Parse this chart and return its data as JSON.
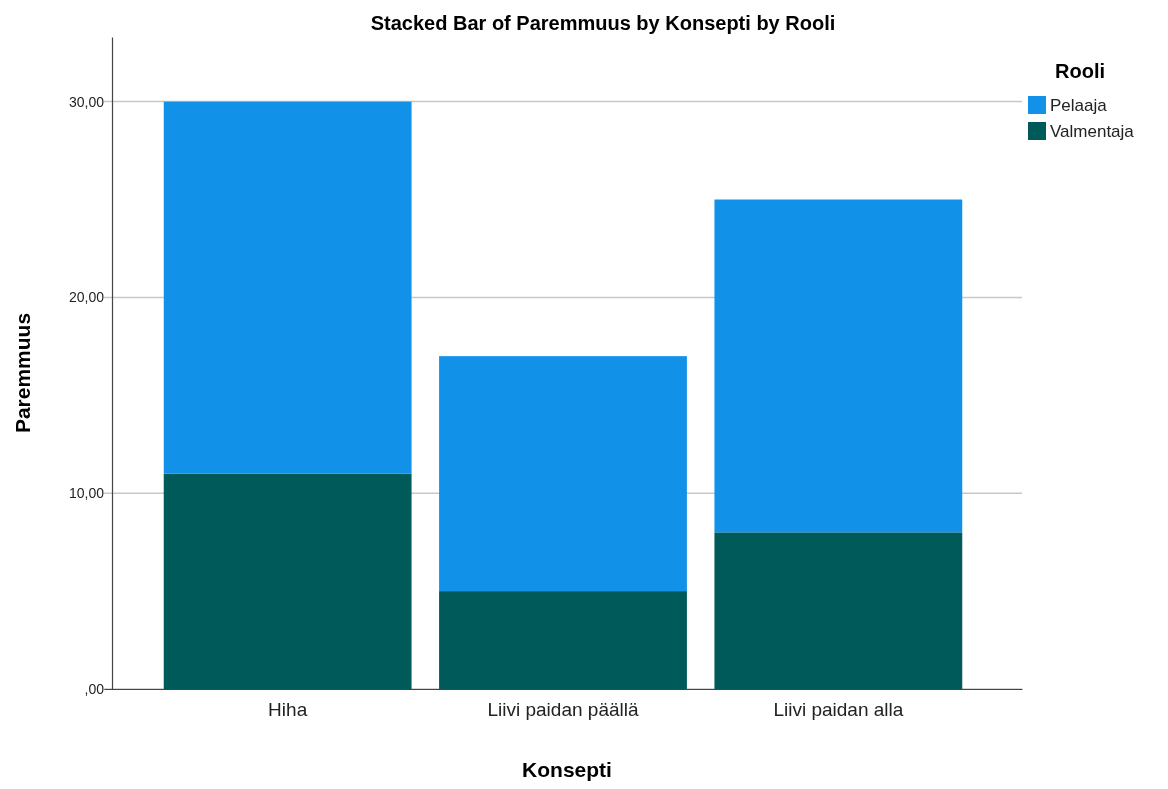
{
  "chart_data": {
    "type": "bar",
    "title": "Stacked Bar of Paremmuus by Konsepti by Rooli",
    "xlabel": "Konsepti",
    "ylabel": "Paremmuus",
    "legend_title": "Rooli",
    "categories": [
      "Hiha",
      "Liivi paidan päällä",
      "Liivi paidan alla"
    ],
    "stacked": true,
    "series": [
      {
        "name": "Valmentaja",
        "color": "#005a5a",
        "values": [
          11,
          5,
          8
        ]
      },
      {
        "name": "Pelaaja",
        "color": "#1192e8",
        "values": [
          19,
          12,
          17
        ]
      }
    ],
    "ylim": [
      0,
      33.3
    ],
    "yticks": [
      {
        "value": 0,
        "label": ",00"
      },
      {
        "value": 10,
        "label": "10,00"
      },
      {
        "value": 20,
        "label": "20,00"
      },
      {
        "value": 30,
        "label": "30,00"
      }
    ],
    "grid": "y",
    "legend": "top right"
  }
}
